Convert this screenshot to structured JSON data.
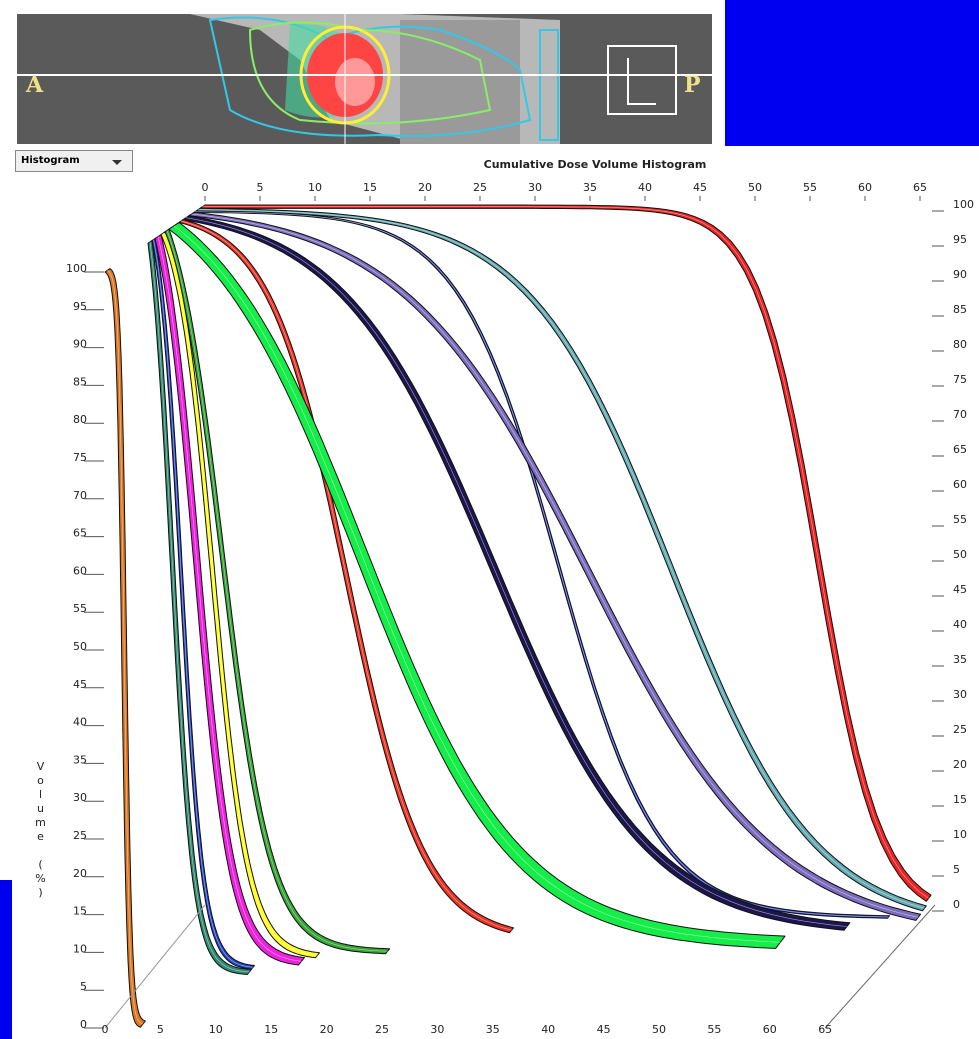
{
  "image_panel": {
    "left_label": "A",
    "right_label": "P"
  },
  "histogram_menu": "Histogram",
  "chart": {
    "title": "Cumulative Dose Volume Histogram",
    "y_axis_label": "Volume (%)",
    "top_x_ticks": [
      0,
      5,
      10,
      15,
      20,
      25,
      30,
      35,
      40,
      45,
      50,
      55,
      60,
      65
    ],
    "right_y_ticks": [
      100,
      95,
      90,
      85,
      80,
      75,
      70,
      65,
      60,
      55,
      50,
      45,
      40,
      35,
      30,
      25,
      20,
      15,
      10,
      5,
      0
    ],
    "left_y_ticks": [
      100,
      95,
      90,
      85,
      80,
      75,
      70,
      65,
      60,
      55,
      50,
      45,
      40,
      35,
      30,
      25,
      20,
      15,
      10,
      5,
      0
    ],
    "bottom_x_ticks": [
      0,
      5,
      10,
      15,
      20,
      25,
      30,
      35,
      40,
      45,
      50,
      55,
      60,
      65
    ]
  }
}
